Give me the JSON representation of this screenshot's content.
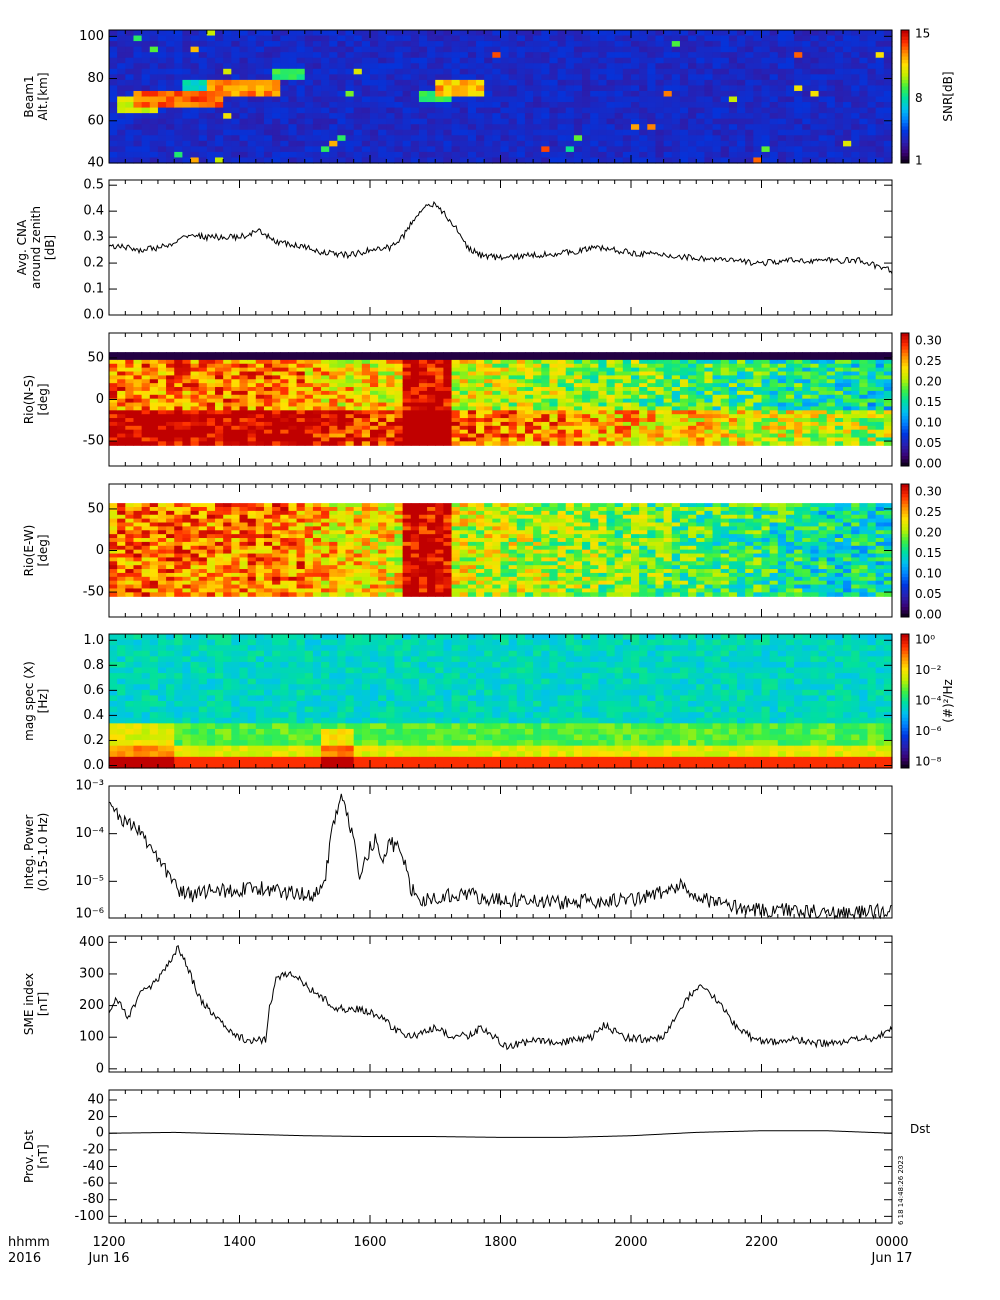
{
  "colors": {
    "axis": "#000000",
    "background": "#ffffff"
  },
  "colormap_stops": [
    "#000000",
    "#3a0070",
    "#2a1fb0",
    "#0036e0",
    "#0080ff",
    "#00c0f0",
    "#00e0a0",
    "#40f040",
    "#c0f000",
    "#ffe000",
    "#ff9000",
    "#ff3000",
    "#c00000"
  ],
  "time_axis": {
    "corner_label_line1": "hhmm",
    "corner_label_line2": "2016",
    "start_hour": 12,
    "end_hour": 24,
    "tick_labels": [
      "1200",
      "1400",
      "1600",
      "1800",
      "2000",
      "2200",
      "0000"
    ],
    "date_labels": [
      {
        "label": "Jun 16",
        "hour": 12
      },
      {
        "label": "Jun 17",
        "hour": 24
      }
    ]
  },
  "footer": {
    "dst_label": "Dst",
    "stamp": "6 18 14:48:26 2023"
  },
  "chart_data": [
    {
      "type": "heatmap",
      "ylabel_lines": [
        "Beam1",
        "Alt.[km]"
      ],
      "ylim": [
        40,
        103
      ],
      "yticks": [
        40,
        60,
        80,
        100
      ],
      "ytick_labels": [
        "40",
        "60",
        "80",
        "100"
      ],
      "colorbar": {
        "label": "SNR[dB]",
        "ticks": [
          "15",
          "8",
          "1"
        ],
        "range": [
          1,
          15
        ]
      },
      "features": [
        {
          "t_start": 12.4,
          "t_end": 13.8,
          "alt": 70,
          "level": 0.95
        },
        {
          "t_start": 12.1,
          "t_end": 12.7,
          "alt": 67,
          "level": 0.75
        },
        {
          "t_start": 13.5,
          "t_end": 14.6,
          "alt": 75,
          "level": 0.9
        },
        {
          "t_start": 14.5,
          "t_end": 15.0,
          "alt": 82,
          "level": 0.6
        },
        {
          "t_start": 13.1,
          "t_end": 14.3,
          "alt": 77,
          "level": 0.5
        },
        {
          "t_start": 17.0,
          "t_end": 17.7,
          "alt": 75,
          "level": 0.85
        },
        {
          "t_start": 16.8,
          "t_end": 17.2,
          "alt": 72,
          "level": 0.6
        }
      ]
    },
    {
      "type": "line",
      "ylabel_lines": [
        "Avg. CNA",
        "around zenith",
        "[dB]"
      ],
      "ylim": [
        0.0,
        0.52
      ],
      "yticks": [
        0.0,
        0.1,
        0.2,
        0.3,
        0.4,
        0.5
      ],
      "ytick_labels": [
        "0.0",
        "0.1",
        "0.2",
        "0.3",
        "0.4",
        "0.5"
      ],
      "series": [
        {
          "x": [
            12.0,
            12.5,
            13.0,
            13.2,
            13.5,
            14.0,
            14.3,
            14.6,
            15.0,
            15.3,
            15.7,
            16.0,
            16.3,
            16.5,
            16.7,
            16.85,
            16.95,
            17.1,
            17.3,
            17.5,
            17.7,
            18.0,
            18.5,
            19.0,
            19.5,
            20.0,
            20.5,
            21.0,
            21.5,
            22.0,
            22.5,
            23.0,
            23.5,
            24.0
          ],
          "y": [
            0.27,
            0.25,
            0.27,
            0.31,
            0.3,
            0.3,
            0.32,
            0.28,
            0.26,
            0.24,
            0.23,
            0.25,
            0.26,
            0.3,
            0.38,
            0.42,
            0.43,
            0.4,
            0.34,
            0.26,
            0.23,
            0.22,
            0.23,
            0.24,
            0.26,
            0.24,
            0.23,
            0.22,
            0.21,
            0.2,
            0.21,
            0.21,
            0.21,
            0.17
          ]
        }
      ],
      "noise": 0.012
    },
    {
      "type": "heatmap",
      "ylabel_lines": [
        "Rio(N-S)",
        "[deg]"
      ],
      "ylim": [
        -80,
        80
      ],
      "yticks": [
        -50,
        0,
        50
      ],
      "ytick_labels": [
        "-50",
        "0",
        "50"
      ],
      "colorbar": {
        "ticks": [
          "0.00",
          "0.05",
          "0.10",
          "0.15",
          "0.20",
          "0.25",
          "0.30"
        ],
        "range": [
          0.0,
          0.33
        ]
      },
      "data_range": [
        -55,
        57
      ]
    },
    {
      "type": "heatmap",
      "ylabel_lines": [
        "Rio(E-W)",
        "[deg]"
      ],
      "ylim": [
        -80,
        80
      ],
      "yticks": [
        -50,
        0,
        50
      ],
      "ytick_labels": [
        "-50",
        "0",
        "50"
      ],
      "colorbar": {
        "ticks": [
          "0.00",
          "0.05",
          "0.10",
          "0.15",
          "0.20",
          "0.25",
          "0.30"
        ],
        "range": [
          0.0,
          0.33
        ]
      },
      "data_range": [
        -55,
        57
      ]
    },
    {
      "type": "heatmap",
      "ylabel_lines": [
        "mag spec (X)",
        "[Hz]"
      ],
      "ylim": [
        -0.02,
        1.05
      ],
      "yticks": [
        0.0,
        0.2,
        0.4,
        0.6,
        0.8,
        1.0
      ],
      "ytick_labels": [
        "0.0",
        "0.2",
        "0.4",
        "0.6",
        "0.8",
        "1.0"
      ],
      "colorbar": {
        "label": "(#)²/Hz",
        "ticks": [
          "10⁰",
          "10⁻²",
          "10⁻⁴",
          "10⁻⁶",
          "10⁻⁸"
        ],
        "range": [
          -9,
          0
        ]
      }
    },
    {
      "type": "line",
      "log_y": true,
      "ylabel_lines": [
        "Integ. Power",
        "(0.15-1.0 Hz)"
      ],
      "ylim": [
        1.7e-06,
        0.001
      ],
      "yticks": [
        1e-05,
        0.0001,
        0.001
      ],
      "ytick_labels": [
        "10⁻⁵",
        "10⁻⁴",
        "10⁻³"
      ],
      "extra_tick_label": "10⁻⁶",
      "series": [
        {
          "x": [
            12.0,
            12.1,
            12.3,
            12.5,
            12.7,
            12.9,
            13.1,
            13.3,
            13.6,
            13.9,
            14.2,
            14.5,
            14.8,
            15.1,
            15.3,
            15.45,
            15.55,
            15.65,
            15.75,
            15.85,
            16.0,
            16.1,
            16.2,
            16.3,
            16.4,
            16.5,
            16.6,
            16.8,
            17.2,
            17.5,
            17.7,
            18.0,
            18.5,
            19.0,
            19.5,
            20.0,
            20.5,
            20.8,
            21.2,
            21.5,
            22.0,
            22.5,
            23.0,
            23.5,
            24.0
          ],
          "y": [
            0.0005,
            0.00025,
            0.00015,
            0.0001,
            4e-05,
            1.5e-05,
            6e-06,
            5e-06,
            7e-06,
            6e-06,
            8e-06,
            6e-06,
            6e-06,
            5e-06,
            1e-05,
            0.0002,
            0.0005,
            0.0003,
            6e-05,
            1.2e-05,
            5e-05,
            8e-05,
            2e-05,
            7e-05,
            5e-05,
            4e-05,
            8e-06,
            4e-06,
            5e-06,
            6e-06,
            4e-06,
            4e-06,
            4e-06,
            3.5e-06,
            4e-06,
            4e-06,
            6e-06,
            8e-06,
            4e-06,
            3e-06,
            2.5e-06,
            2.5e-06,
            2.2e-06,
            2.2e-06,
            2.4e-06
          ]
        }
      ],
      "noise_log": 0.16
    },
    {
      "type": "line",
      "ylabel_lines": [
        "SME index",
        "[nT]"
      ],
      "ylim": [
        -10,
        420
      ],
      "yticks": [
        0,
        100,
        200,
        300,
        400
      ],
      "ytick_labels": [
        "0",
        "100",
        "200",
        "300",
        "400"
      ],
      "series": [
        {
          "x": [
            12.0,
            12.1,
            12.3,
            12.5,
            12.7,
            12.9,
            13.0,
            13.05,
            13.2,
            13.4,
            13.6,
            13.8,
            14.0,
            14.2,
            14.4,
            14.45,
            14.55,
            14.7,
            14.9,
            15.1,
            15.3,
            15.5,
            15.8,
            16.0,
            16.2,
            16.4,
            16.6,
            16.8,
            17.0,
            17.2,
            17.5,
            17.7,
            17.9,
            18.1,
            18.3,
            18.6,
            19.0,
            19.4,
            19.6,
            19.9,
            20.2,
            20.5,
            20.7,
            20.9,
            21.1,
            21.3,
            21.6,
            21.9,
            22.2,
            22.5,
            22.8,
            23.1,
            23.4,
            23.7,
            24.0
          ],
          "y": [
            170,
            230,
            160,
            250,
            270,
            330,
            360,
            390,
            320,
            220,
            170,
            130,
            100,
            85,
            95,
            180,
            280,
            300,
            290,
            250,
            220,
            190,
            190,
            180,
            160,
            120,
            105,
            110,
            130,
            105,
            105,
            130,
            100,
            70,
            80,
            90,
            85,
            100,
            140,
            100,
            95,
            100,
            170,
            230,
            260,
            220,
            140,
            90,
            85,
            95,
            80,
            80,
            90,
            95,
            130
          ]
        }
      ],
      "noise": 12
    },
    {
      "type": "line",
      "ylabel_lines": [
        "Prov. Dst",
        "[nT]"
      ],
      "ylim": [
        -108,
        52
      ],
      "yticks": [
        -100,
        -80,
        -60,
        -40,
        -20,
        0,
        20,
        40
      ],
      "ytick_labels": [
        "-100",
        "-80",
        "-60",
        "-40",
        "-20",
        "0",
        "20",
        "40"
      ],
      "series": [
        {
          "x": [
            12.0,
            13.0,
            14.0,
            15.0,
            16.0,
            17.0,
            18.0,
            19.0,
            20.0,
            21.0,
            22.0,
            23.0,
            24.0
          ],
          "y": [
            0,
            1,
            -1,
            -3,
            -4,
            -4,
            -5,
            -5,
            -3,
            1,
            3,
            3,
            0
          ]
        }
      ],
      "noise": 0
    }
  ]
}
